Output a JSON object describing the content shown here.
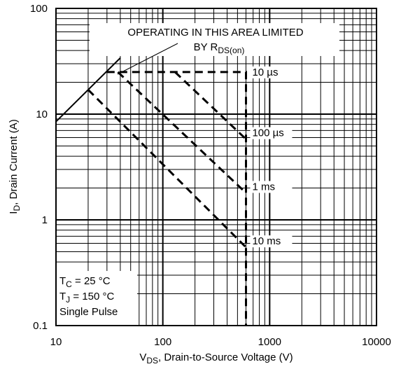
{
  "chart_data": {
    "type": "line",
    "scale": {
      "x": "log",
      "y": "log"
    },
    "xlim": [
      10,
      10000
    ],
    "ylim": [
      0.1,
      100
    ],
    "grid": true,
    "xticks": [
      "10",
      "100",
      "1000",
      "10000"
    ],
    "yticks": [
      "0.1",
      "1",
      "10",
      "100"
    ],
    "xlabel": {
      "main": "V",
      "sub": "DS",
      "rest": ", Drain-to-Source Voltage (V)"
    },
    "ylabel": {
      "main": "I",
      "sub": "D",
      "rest": ", Drain Current (A)"
    },
    "annotation": {
      "line1": "OPERATING IN THIS AREA LIMITED",
      "line2": "BY R",
      "line2_sub": "DS(on)"
    },
    "conditions": [
      {
        "main": "T",
        "sub": "C",
        "rest": " = 25 °C"
      },
      {
        "main": "T",
        "sub": "J",
        "rest": " = 150 °C"
      },
      {
        "main": "Single Pulse",
        "sub": "",
        "rest": ""
      }
    ],
    "rds_on_limit": {
      "x": [
        10,
        40
      ],
      "y": [
        8.5,
        34
      ]
    },
    "series": [
      {
        "name": "10 µs",
        "x": [
          30,
          600,
          600
        ],
        "y": [
          25,
          25,
          0.1
        ]
      },
      {
        "name": "100 µs",
        "x": [
          130,
          600
        ],
        "y": [
          25,
          5.8
        ]
      },
      {
        "name": "1 ms",
        "x": [
          38,
          600
        ],
        "y": [
          25,
          1.8
        ]
      },
      {
        "name": "10 ms",
        "x": [
          20,
          600
        ],
        "y": [
          17,
          0.55
        ]
      }
    ],
    "line_color": "#000000"
  }
}
